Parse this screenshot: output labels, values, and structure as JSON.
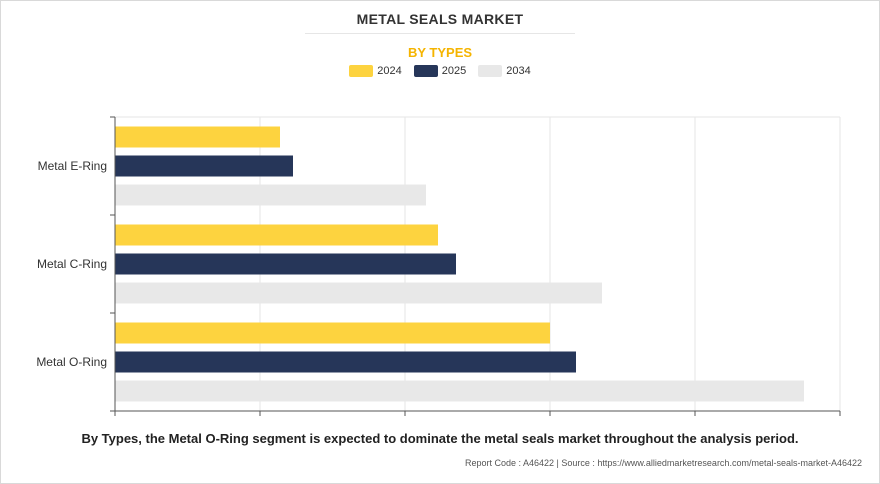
{
  "chart_data": {
    "type": "bar",
    "orientation": "horizontal",
    "title": "METAL SEALS MARKET",
    "subtitle": "BY TYPES",
    "categories": [
      "Metal E-Ring",
      "Metal C-Ring",
      "Metal O-Ring"
    ],
    "series": [
      {
        "name": "2024",
        "color": "#fdd33f",
        "values": [
          165,
          323,
          435
        ]
      },
      {
        "name": "2025",
        "color": "#263659",
        "values": [
          178,
          341,
          461
        ]
      },
      {
        "name": "2034",
        "color": "#e8e8e8",
        "values": [
          311,
          487,
          689
        ]
      }
    ],
    "xlim": [
      0,
      725
    ],
    "grid": true,
    "legend_position": "top-center"
  },
  "footnote": "By Types, the Metal O-Ring segment is expected to dominate the metal seals market throughout the analysis period.",
  "source": "Report Code : A46422  |  Source : https://www.alliedmarketresearch.com/metal-seals-market-A46422"
}
